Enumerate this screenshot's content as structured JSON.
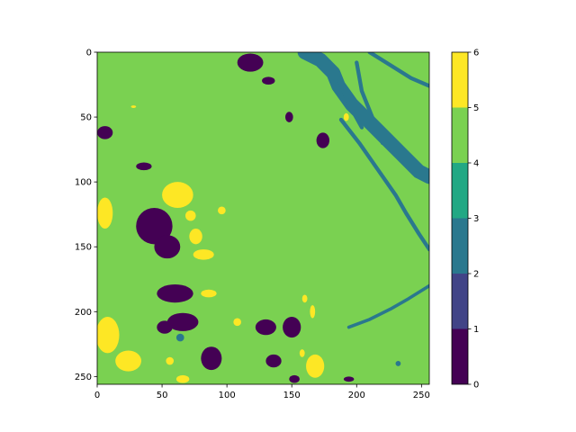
{
  "chart_data": {
    "type": "heatmap",
    "title": "",
    "xlabel": "",
    "ylabel": "",
    "xlim": [
      0,
      256
    ],
    "ylim": [
      256,
      0
    ],
    "x_ticks": [
      0,
      50,
      100,
      150,
      200,
      250
    ],
    "y_ticks": [
      0,
      50,
      100,
      150,
      200,
      250
    ],
    "grid": false,
    "colormap": "viridis-discrete",
    "colorbar": {
      "range": [
        0,
        6
      ],
      "ticks": [
        0,
        1,
        2,
        3,
        4,
        5,
        6
      ],
      "levels": [
        {
          "from": 0,
          "to": 1,
          "color": "#440154"
        },
        {
          "from": 1,
          "to": 2,
          "color": "#414487"
        },
        {
          "from": 2,
          "to": 3,
          "color": "#2a788e"
        },
        {
          "from": 3,
          "to": 4,
          "color": "#22a884"
        },
        {
          "from": 4,
          "to": 5,
          "color": "#7ad151"
        },
        {
          "from": 5,
          "to": 6,
          "color": "#fde725"
        }
      ]
    },
    "background_class": 4,
    "regions": [
      {
        "class": 2,
        "kind": "river-main",
        "points": [
          [
            160,
            0
          ],
          [
            172,
            6
          ],
          [
            182,
            16
          ],
          [
            186,
            26
          ],
          [
            196,
            40
          ],
          [
            210,
            54
          ],
          [
            224,
            68
          ],
          [
            236,
            80
          ],
          [
            248,
            92
          ],
          [
            256,
            96
          ]
        ]
      },
      {
        "class": 2,
        "kind": "river-branch",
        "points": [
          [
            188,
            52
          ],
          [
            202,
            70
          ],
          [
            216,
            90
          ],
          [
            230,
            110
          ],
          [
            238,
            124
          ],
          [
            248,
            140
          ],
          [
            256,
            152
          ]
        ]
      },
      {
        "class": 2,
        "kind": "river-branch",
        "points": [
          [
            200,
            8
          ],
          [
            204,
            30
          ],
          [
            212,
            50
          ],
          [
            220,
            70
          ]
        ]
      },
      {
        "class": 2,
        "kind": "river-branch",
        "points": [
          [
            210,
            0
          ],
          [
            226,
            10
          ],
          [
            242,
            20
          ],
          [
            256,
            26
          ]
        ]
      },
      {
        "class": 2,
        "kind": "river-branch",
        "points": [
          [
            186,
            20
          ],
          [
            194,
            40
          ],
          [
            204,
            58
          ]
        ]
      },
      {
        "class": 2,
        "kind": "channel",
        "points": [
          [
            194,
            212
          ],
          [
            210,
            206
          ],
          [
            226,
            198
          ],
          [
            240,
            190
          ],
          [
            256,
            180
          ]
        ]
      },
      {
        "class": 2,
        "kind": "spot",
        "x": 232,
        "y": 240,
        "r": 2
      },
      {
        "class": 2,
        "kind": "spot",
        "x": 64,
        "y": 220,
        "r": 3
      },
      {
        "class": 0,
        "x": 118,
        "y": 8,
        "rx": 10,
        "ry": 7
      },
      {
        "class": 0,
        "x": 132,
        "y": 22,
        "rx": 5,
        "ry": 3
      },
      {
        "class": 0,
        "x": 148,
        "y": 50,
        "rx": 3,
        "ry": 4
      },
      {
        "class": 0,
        "x": 174,
        "y": 68,
        "rx": 5,
        "ry": 6
      },
      {
        "class": 0,
        "x": 6,
        "y": 62,
        "rx": 6,
        "ry": 5
      },
      {
        "class": 0,
        "x": 36,
        "y": 88,
        "rx": 6,
        "ry": 3
      },
      {
        "class": 0,
        "x": 44,
        "y": 134,
        "rx": 14,
        "ry": 14
      },
      {
        "class": 0,
        "x": 54,
        "y": 150,
        "rx": 10,
        "ry": 9
      },
      {
        "class": 0,
        "x": 60,
        "y": 186,
        "rx": 14,
        "ry": 7
      },
      {
        "class": 0,
        "x": 66,
        "y": 208,
        "rx": 12,
        "ry": 7
      },
      {
        "class": 0,
        "x": 52,
        "y": 212,
        "rx": 6,
        "ry": 5
      },
      {
        "class": 0,
        "x": 88,
        "y": 236,
        "rx": 8,
        "ry": 9
      },
      {
        "class": 0,
        "x": 130,
        "y": 212,
        "rx": 8,
        "ry": 6
      },
      {
        "class": 0,
        "x": 150,
        "y": 212,
        "rx": 7,
        "ry": 8
      },
      {
        "class": 0,
        "x": 136,
        "y": 238,
        "rx": 6,
        "ry": 5
      },
      {
        "class": 0,
        "x": 152,
        "y": 252,
        "rx": 4,
        "ry": 3
      },
      {
        "class": 0,
        "x": 194,
        "y": 252,
        "rx": 4,
        "ry": 2
      },
      {
        "class": 5,
        "x": 62,
        "y": 110,
        "rx": 12,
        "ry": 10
      },
      {
        "class": 5,
        "x": 72,
        "y": 126,
        "rx": 4,
        "ry": 4
      },
      {
        "class": 5,
        "x": 6,
        "y": 124,
        "rx": 6,
        "ry": 12
      },
      {
        "class": 5,
        "x": 8,
        "y": 218,
        "rx": 9,
        "ry": 14
      },
      {
        "class": 5,
        "x": 24,
        "y": 238,
        "rx": 10,
        "ry": 8
      },
      {
        "class": 5,
        "x": 82,
        "y": 156,
        "rx": 8,
        "ry": 4
      },
      {
        "class": 5,
        "x": 76,
        "y": 142,
        "rx": 5,
        "ry": 6
      },
      {
        "class": 5,
        "x": 86,
        "y": 186,
        "rx": 6,
        "ry": 3
      },
      {
        "class": 5,
        "x": 96,
        "y": 122,
        "rx": 3,
        "ry": 3
      },
      {
        "class": 5,
        "x": 168,
        "y": 242,
        "rx": 7,
        "ry": 9
      },
      {
        "class": 5,
        "x": 66,
        "y": 252,
        "rx": 5,
        "ry": 3
      },
      {
        "class": 5,
        "x": 56,
        "y": 238,
        "rx": 3,
        "ry": 3
      },
      {
        "class": 5,
        "x": 160,
        "y": 190,
        "rx": 2,
        "ry": 3
      },
      {
        "class": 5,
        "x": 166,
        "y": 200,
        "rx": 2,
        "ry": 5
      },
      {
        "class": 5,
        "x": 108,
        "y": 208,
        "rx": 3,
        "ry": 3
      },
      {
        "class": 5,
        "x": 192,
        "y": 50,
        "rx": 2,
        "ry": 3
      },
      {
        "class": 5,
        "x": 158,
        "y": 232,
        "rx": 2,
        "ry": 3
      },
      {
        "class": 5,
        "x": 28,
        "y": 42,
        "rx": 2,
        "ry": 1
      }
    ]
  }
}
